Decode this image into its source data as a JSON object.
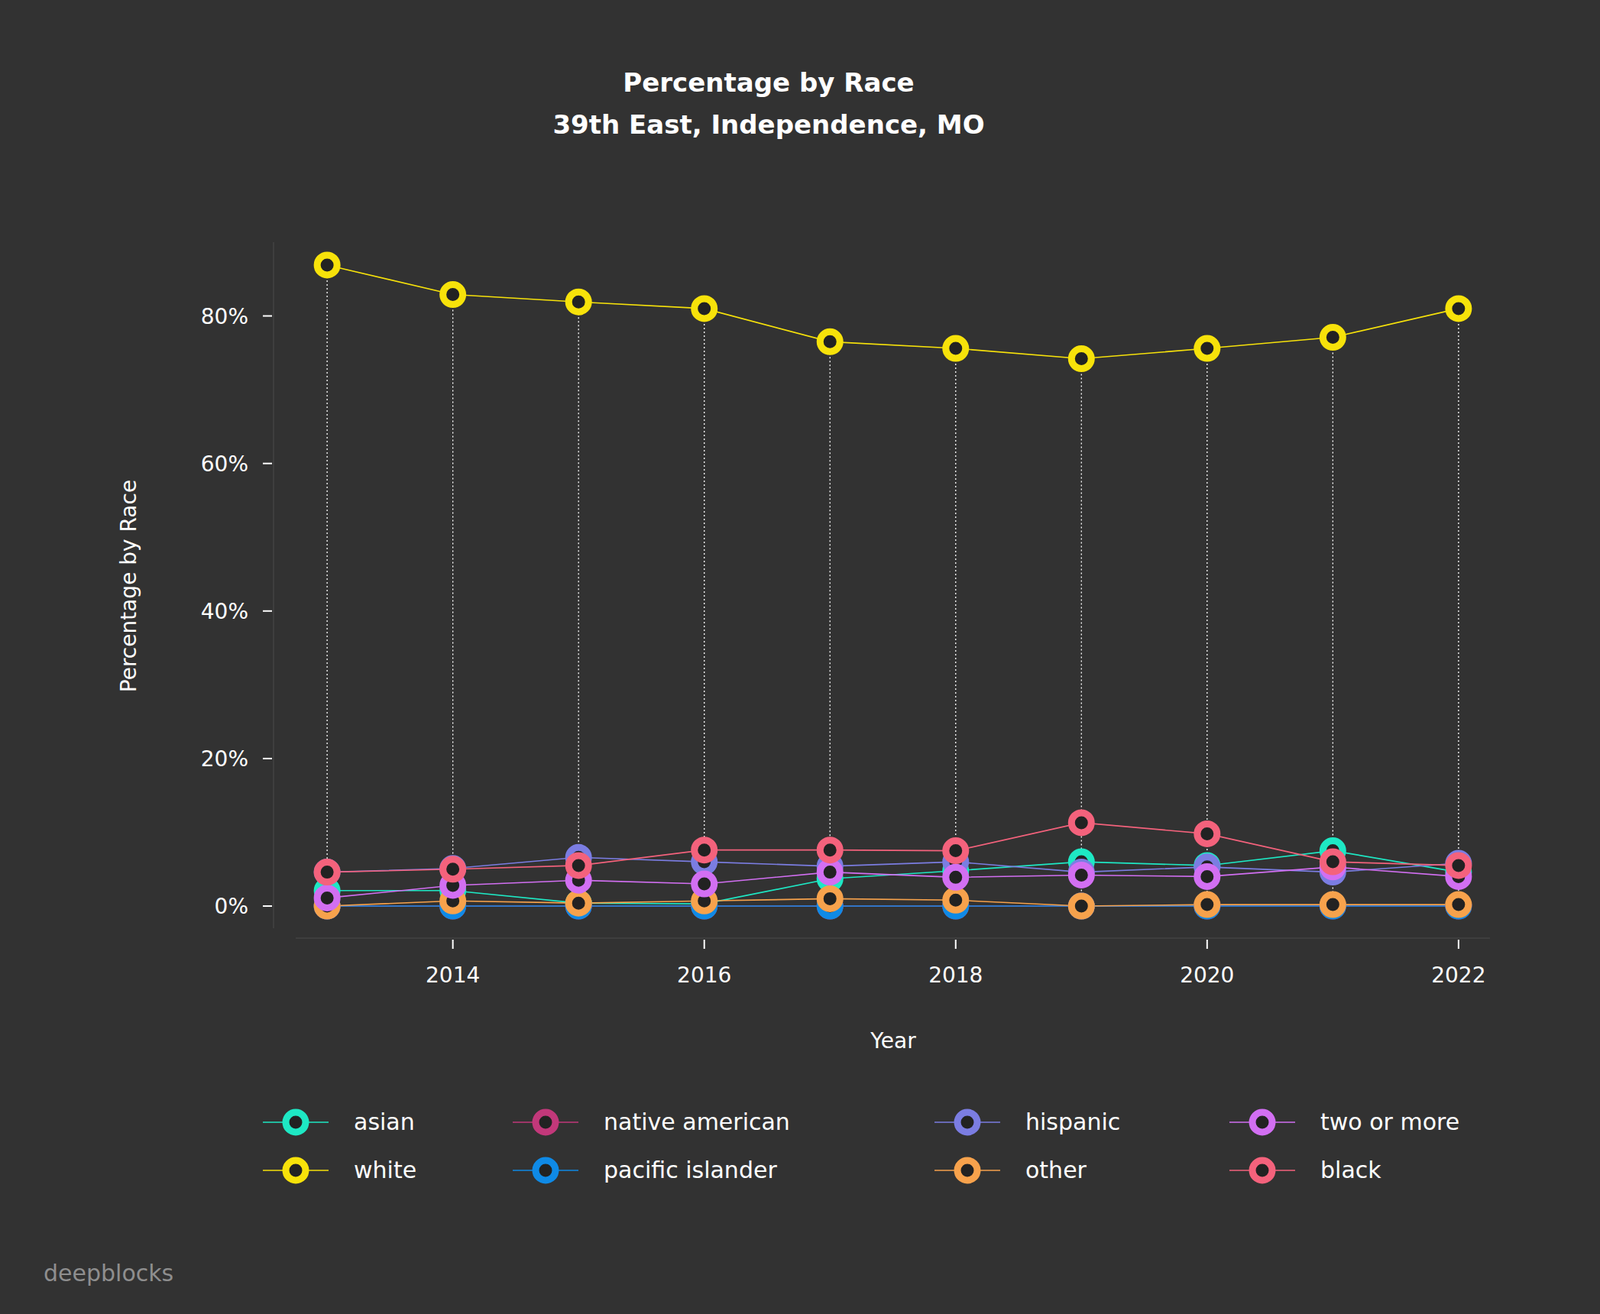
{
  "chart_data": {
    "type": "line",
    "title": "Percentage by Race",
    "subtitle": "39th East, Independence, MO",
    "x_label": "Year",
    "y_label": "Percentage by Race",
    "watermark": "deepblocks",
    "marker": "circle",
    "x": [
      2013,
      2014,
      2015,
      2016,
      2017,
      2018,
      2019,
      2020,
      2021,
      2022
    ],
    "xlim": [
      2012.75,
      2022.25
    ],
    "xticks": [
      2014,
      2016,
      2018,
      2020,
      2022
    ],
    "ylim": [
      -3,
      90
    ],
    "yticks": [
      {
        "value": 0,
        "label": "0%"
      },
      {
        "value": 20,
        "label": "20%"
      },
      {
        "value": 40,
        "label": "40%"
      },
      {
        "value": 60,
        "label": "60%"
      },
      {
        "value": 80,
        "label": "80%"
      }
    ],
    "series": [
      {
        "name": "asian",
        "color": "#1ee8c4",
        "values": [
          2.1,
          2.1,
          0.4,
          0.3,
          3.7,
          4.8,
          6.0,
          5.5,
          7.5,
          4.6
        ]
      },
      {
        "name": "white",
        "color": "#f7e20a",
        "values": [
          86.9,
          82.9,
          81.9,
          81.0,
          76.5,
          75.6,
          74.2,
          75.6,
          77.1,
          81.0
        ]
      },
      {
        "name": "native american",
        "color": "#c2387a",
        "values": [
          0,
          0,
          0,
          0,
          0,
          0,
          0,
          0,
          0,
          0
        ]
      },
      {
        "name": "pacific islander",
        "color": "#0f8ae6",
        "values": [
          0,
          0,
          0,
          0,
          0,
          0,
          0,
          0,
          0,
          0
        ]
      },
      {
        "name": "hispanic",
        "color": "#7b7de2",
        "values": [
          4.6,
          5.1,
          6.6,
          6.0,
          5.4,
          6.0,
          4.6,
          5.3,
          4.6,
          5.8
        ]
      },
      {
        "name": "other",
        "color": "#f7a24c",
        "values": [
          0,
          0.7,
          0.4,
          0.7,
          1.0,
          0.8,
          0,
          0.2,
          0.2,
          0.2
        ]
      },
      {
        "name": "two or more",
        "color": "#d26ff2",
        "values": [
          1.1,
          2.8,
          3.5,
          3.0,
          4.6,
          3.9,
          4.2,
          4.0,
          5.3,
          4.0
        ]
      },
      {
        "name": "black",
        "color": "#f4627c",
        "values": [
          4.6,
          5.0,
          5.5,
          7.6,
          7.6,
          7.5,
          11.3,
          9.8,
          6.0,
          5.5
        ]
      }
    ]
  }
}
